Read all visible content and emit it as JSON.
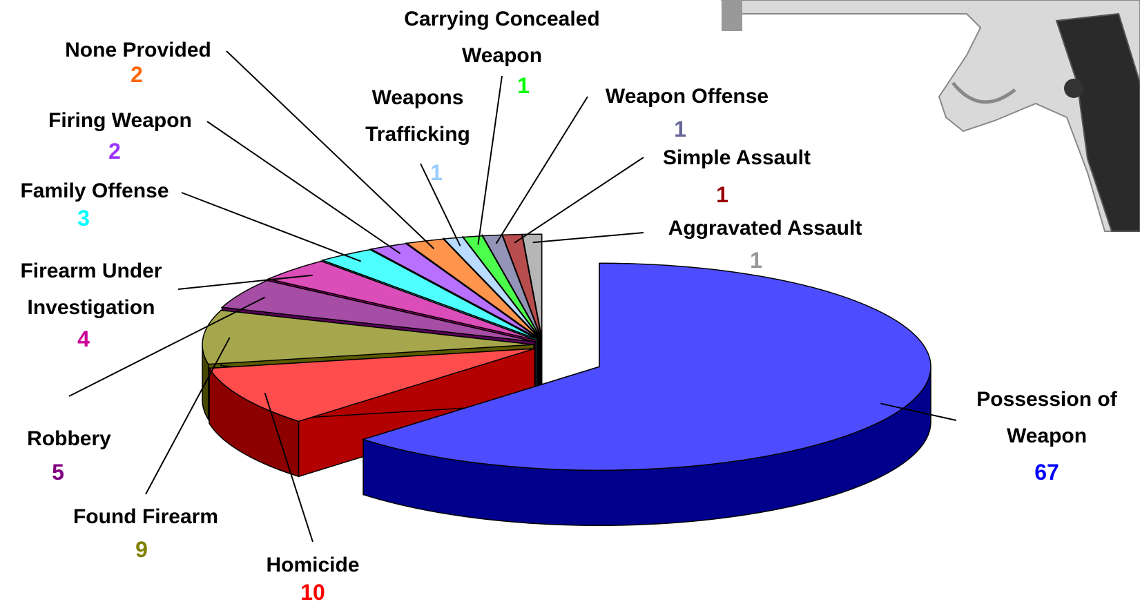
{
  "chart_data": {
    "type": "pie",
    "categories": [
      "Possession of Weapon",
      "Homicide",
      "Found Firearm",
      "Robbery",
      "Firearm Under Investigation",
      "Family Offense",
      "Firing Weapon",
      "None Provided",
      "Weapons Trafficking",
      "Carrying Concealed Weapon",
      "Weapon Offense",
      "Simple Assault",
      "Aggravated Assault"
    ],
    "values": [
      67,
      10,
      9,
      5,
      4,
      3,
      2,
      2,
      1,
      1,
      1,
      1,
      1
    ],
    "colors": [
      "#0000ff",
      "#ff0000",
      "#808000",
      "#800080",
      "#cc0099",
      "#00ffff",
      "#9933ff",
      "#ff6600",
      "#99ccff",
      "#00ff00",
      "#666699",
      "#990000",
      "#969696"
    ]
  }
}
